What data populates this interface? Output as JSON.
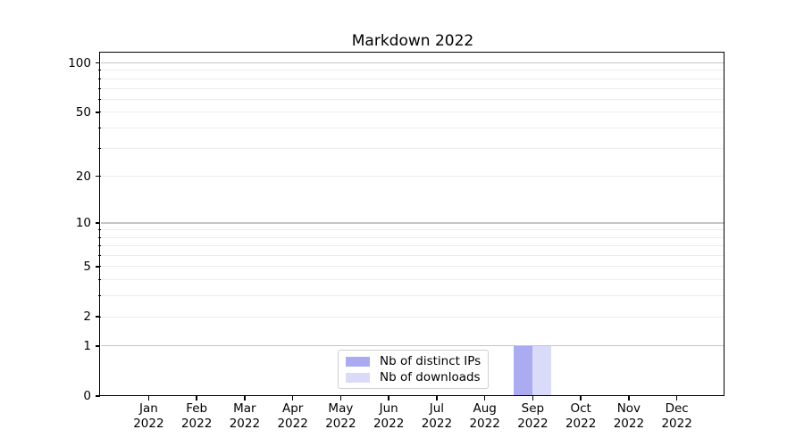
{
  "chart_data": {
    "type": "bar",
    "title": "Markdown 2022",
    "categories": [
      "Jan",
      "Feb",
      "Mar",
      "Apr",
      "May",
      "Jun",
      "Jul",
      "Aug",
      "Sep",
      "Oct",
      "Nov",
      "Dec"
    ],
    "category_year": "2022",
    "series": [
      {
        "name": "Nb of distinct IPs",
        "color": "#ababf2",
        "values": [
          0,
          0,
          0,
          0,
          0,
          0,
          0,
          0,
          1,
          0,
          0,
          0
        ]
      },
      {
        "name": "Nb of downloads",
        "color": "#dadaf9",
        "values": [
          0,
          0,
          0,
          0,
          0,
          0,
          0,
          0,
          1,
          0,
          0,
          0
        ]
      }
    ],
    "xlabel": "",
    "ylabel": "",
    "y_scale": "log1p",
    "ylim": [
      0,
      114
    ],
    "y_major_ticks": [
      0,
      1,
      2,
      5,
      10,
      20,
      50,
      100
    ],
    "y_decade_gridlines": [
      1,
      10,
      100
    ],
    "y_minor_gridlines": [
      2,
      3,
      4,
      5,
      6,
      7,
      8,
      9,
      20,
      30,
      40,
      50,
      60,
      70,
      80,
      90
    ],
    "grid": true,
    "legend_position": "lower center",
    "colors": {
      "major_grid": "#c6c6c6",
      "minor_grid": "#ececec",
      "axis": "#000000",
      "background": "#ffffff"
    }
  }
}
